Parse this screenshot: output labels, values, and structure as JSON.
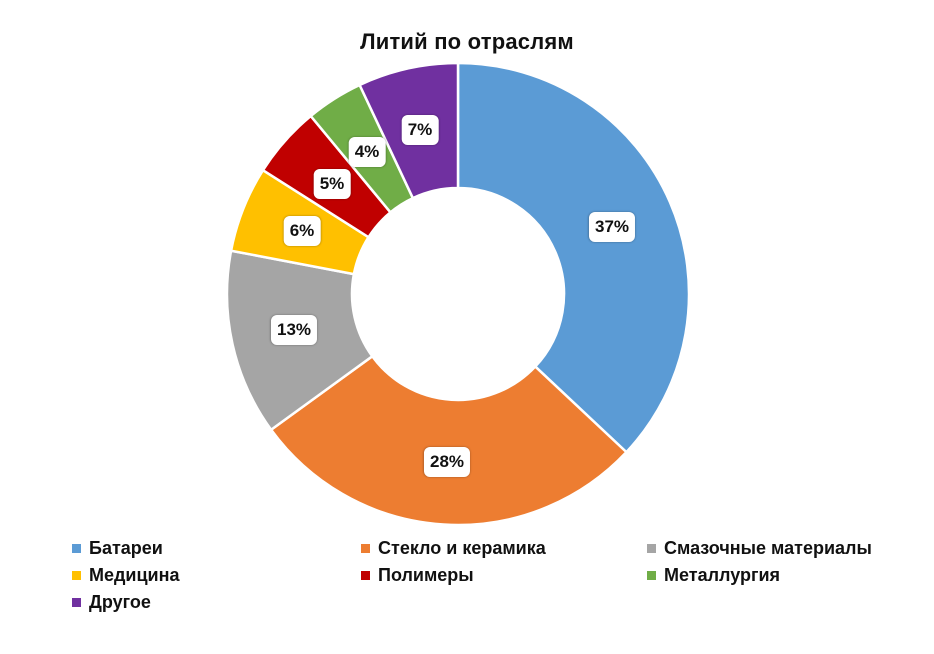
{
  "chart_data": {
    "type": "pie",
    "variant": "donut",
    "title": "Литий по отраслям",
    "categories": [
      "Батареи",
      "Стекло и керамика",
      "Смазочные материалы",
      "Медицина",
      "Полимеры",
      "Металлургия",
      "Другое"
    ],
    "values": [
      37,
      28,
      13,
      6,
      5,
      4,
      7
    ],
    "labels": [
      "37%",
      "28%",
      "13%",
      "6%",
      "5%",
      "4%",
      "7%"
    ],
    "colors": [
      "#5B9BD5",
      "#ED7D31",
      "#A5A5A5",
      "#FFC000",
      "#C00000",
      "#70AD47",
      "#7030A0"
    ],
    "start_angle_deg": 0,
    "direction": "clockwise",
    "legend_position": "bottom"
  },
  "title": "Литий по отраслям",
  "legend": [
    {
      "label": "Батареи",
      "color": "#5B9BD5"
    },
    {
      "label": "Стекло и керамика",
      "color": "#ED7D31"
    },
    {
      "label": "Смазочные материалы",
      "color": "#A5A5A5"
    },
    {
      "label": "Медицина",
      "color": "#FFC000"
    },
    {
      "label": "Полимеры",
      "color": "#C00000"
    },
    {
      "label": "Металлургия",
      "color": "#70AD47"
    },
    {
      "label": "Другое",
      "color": "#7030A0"
    }
  ]
}
